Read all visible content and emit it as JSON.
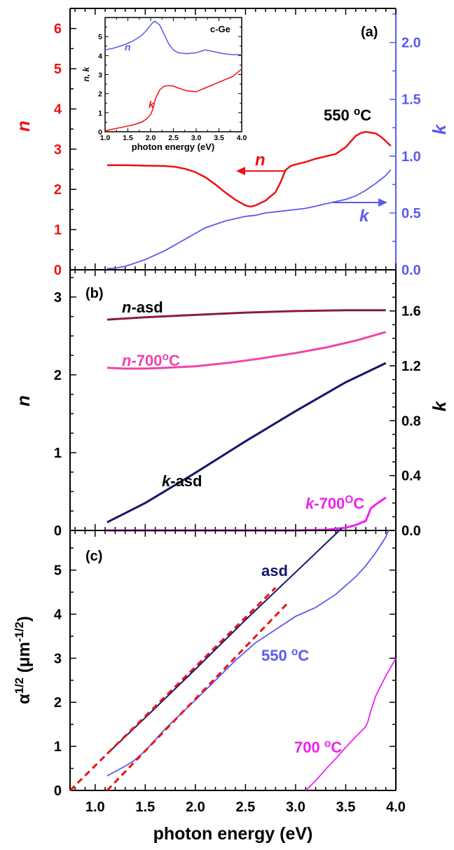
{
  "x_axis": {
    "label": "photon energy (eV)",
    "range": [
      0.75,
      4.0
    ],
    "ticks": [
      "1.0",
      "1.5",
      "2.0",
      "2.5",
      "3.0",
      "3.5",
      "4.0"
    ],
    "tick_values": [
      1.0,
      1.5,
      2.0,
      2.5,
      3.0,
      3.5,
      4.0
    ]
  },
  "colors": {
    "n_red": "#ee1111",
    "k_blue": "#5a5af0",
    "asd_n": "#8b1a4a",
    "ann_n": "#ee44aa",
    "asd_k": "#14146e",
    "ann_k": "#ee22ee",
    "fit_dash": "#ee1111",
    "frame": "#000000"
  },
  "panels": {
    "a": {
      "label": "(a)",
      "title_annotation": "550 °C",
      "left_axis": {
        "label": "n",
        "range": [
          0,
          6.5
        ],
        "ticks": [
          "0",
          "1",
          "2",
          "3",
          "4",
          "5",
          "6"
        ],
        "tick_values": [
          0,
          1,
          2,
          3,
          4,
          5,
          6
        ]
      },
      "right_axis": {
        "label": "k",
        "range": [
          0,
          2.3
        ],
        "ticks": [
          "0.0",
          "0.5",
          "1.0",
          "1.5",
          "2.0"
        ],
        "tick_values": [
          0,
          0.5,
          1.0,
          1.5,
          2.0
        ]
      },
      "arrow_n_label": "n",
      "arrow_k_label": "k",
      "inset": {
        "title": "c-Ge",
        "ylabel": "n, k",
        "xlabel": "photon energy (eV)",
        "x_range": [
          1.0,
          4.0
        ],
        "y_range": [
          0,
          6
        ],
        "x_ticks": [
          "1.0",
          "1.5",
          "2.0",
          "2.5",
          "3.0",
          "3.5",
          "4.0"
        ],
        "x_tick_values": [
          1.0,
          1.5,
          2.0,
          2.5,
          3.0,
          3.5,
          4.0
        ],
        "y_ticks": [
          "0",
          "1",
          "2",
          "3",
          "4",
          "5"
        ],
        "y_tick_values": [
          0,
          1,
          2,
          3,
          4,
          5
        ],
        "n_label": "n",
        "k_label": "k"
      }
    },
    "b": {
      "label": "(b)",
      "left_axis": {
        "label": "n",
        "range": [
          0,
          3.35
        ],
        "ticks": [
          "0",
          "1",
          "2",
          "3"
        ],
        "tick_values": [
          0,
          1,
          2,
          3
        ]
      },
      "right_axis": {
        "label": "k",
        "range": [
          0,
          1.9
        ],
        "ticks": [
          "0.0",
          "0.4",
          "0.8",
          "1.2",
          "1.6"
        ],
        "tick_values": [
          0,
          0.4,
          0.8,
          1.2,
          1.6
        ]
      },
      "labels": {
        "n_asd_prefix": "n",
        "n_asd_suffix": "-asd",
        "n_700_prefix": "n",
        "n_700_suffix": "-700",
        "n_700_sup": "o",
        "n_700_unit": "C",
        "k_asd_prefix": "k",
        "k_asd_suffix": "-asd",
        "k_700_prefix": "k",
        "k_700_suffix": "-700",
        "k_700_sup": "O",
        "k_700_unit": "C"
      }
    },
    "c": {
      "label": "(c)",
      "left_axis": {
        "label_main": "α",
        "label_sup": "1/2",
        "label_unit": " (μm",
        "label_unit_sup": "-1/2",
        "label_close": ")",
        "range": [
          0,
          5.9
        ],
        "ticks": [
          "0",
          "1",
          "2",
          "3",
          "4",
          "5"
        ],
        "tick_values": [
          0,
          1,
          2,
          3,
          4,
          5
        ]
      },
      "labels": {
        "asd": "asd",
        "t550_value": "550 ",
        "t550_sup": "o",
        "t550_unit": "C",
        "t700_value": "700 ",
        "t700_sup": "o",
        "t700_unit": "C"
      }
    }
  },
  "chart_data": [
    {
      "panel": "a",
      "type": "line",
      "series": [
        {
          "name": "n",
          "axis": "left",
          "x": [
            1.12,
            1.3,
            1.5,
            1.7,
            1.8,
            1.9,
            2.0,
            2.1,
            2.2,
            2.3,
            2.4,
            2.5,
            2.55,
            2.6,
            2.7,
            2.8,
            2.85,
            2.9,
            2.95,
            3.0,
            3.1,
            3.2,
            3.3,
            3.4,
            3.5,
            3.6,
            3.65,
            3.7,
            3.8,
            3.85,
            3.9,
            3.95
          ],
          "y": [
            2.6,
            2.6,
            2.59,
            2.58,
            2.56,
            2.51,
            2.43,
            2.3,
            2.12,
            1.92,
            1.74,
            1.6,
            1.57,
            1.6,
            1.72,
            1.93,
            2.18,
            2.48,
            2.58,
            2.62,
            2.68,
            2.76,
            2.82,
            2.88,
            3.05,
            3.33,
            3.4,
            3.43,
            3.39,
            3.31,
            3.2,
            3.08
          ]
        },
        {
          "name": "k",
          "axis": "right",
          "x": [
            1.12,
            1.2,
            1.3,
            1.4,
            1.5,
            1.6,
            1.7,
            1.8,
            1.9,
            2.0,
            2.1,
            2.2,
            2.3,
            2.4,
            2.5,
            2.6,
            2.7,
            2.8,
            2.9,
            3.0,
            3.1,
            3.2,
            3.3,
            3.4,
            3.5,
            3.6,
            3.7,
            3.8,
            3.9,
            3.95
          ],
          "y": [
            0.01,
            0.015,
            0.03,
            0.06,
            0.09,
            0.13,
            0.17,
            0.22,
            0.27,
            0.32,
            0.37,
            0.4,
            0.43,
            0.45,
            0.47,
            0.48,
            0.5,
            0.51,
            0.52,
            0.53,
            0.54,
            0.56,
            0.58,
            0.6,
            0.62,
            0.65,
            0.7,
            0.76,
            0.83,
            0.88
          ]
        }
      ]
    },
    {
      "panel": "a-inset",
      "type": "line",
      "series": [
        {
          "name": "n",
          "x": [
            1.0,
            1.2,
            1.4,
            1.6,
            1.8,
            1.9,
            2.0,
            2.05,
            2.1,
            2.2,
            2.3,
            2.4,
            2.5,
            2.6,
            2.8,
            3.0,
            3.2,
            3.4,
            3.6,
            3.8,
            4.0
          ],
          "y": [
            4.3,
            4.4,
            4.55,
            4.75,
            5.05,
            5.3,
            5.6,
            5.75,
            5.8,
            5.6,
            5.1,
            4.6,
            4.3,
            4.15,
            4.1,
            4.15,
            4.3,
            4.2,
            4.1,
            4.05,
            4.05
          ]
        },
        {
          "name": "k",
          "x": [
            1.0,
            1.2,
            1.4,
            1.6,
            1.8,
            1.9,
            2.0,
            2.05,
            2.1,
            2.2,
            2.3,
            2.4,
            2.5,
            2.6,
            2.8,
            3.0,
            3.2,
            3.4,
            3.6,
            3.8,
            4.0
          ],
          "y": [
            0.05,
            0.15,
            0.25,
            0.35,
            0.5,
            0.65,
            0.9,
            1.2,
            1.7,
            2.2,
            2.4,
            2.42,
            2.4,
            2.3,
            2.15,
            2.1,
            2.3,
            2.5,
            2.7,
            2.9,
            3.3
          ]
        }
      ]
    },
    {
      "panel": "b",
      "type": "line",
      "series": [
        {
          "name": "n-asd",
          "axis": "left",
          "x": [
            1.12,
            1.5,
            2.0,
            2.5,
            3.0,
            3.5,
            3.9
          ],
          "y": [
            2.71,
            2.74,
            2.77,
            2.8,
            2.82,
            2.83,
            2.83
          ]
        },
        {
          "name": "n-700°C",
          "axis": "left",
          "x": [
            1.12,
            1.3,
            1.5,
            1.7,
            2.0,
            2.3,
            2.6,
            3.0,
            3.3,
            3.6,
            3.9
          ],
          "y": [
            2.09,
            2.08,
            2.08,
            2.09,
            2.11,
            2.15,
            2.2,
            2.28,
            2.35,
            2.44,
            2.55
          ]
        },
        {
          "name": "k-asd",
          "axis": "right",
          "x": [
            1.12,
            1.5,
            2.0,
            2.5,
            3.0,
            3.5,
            3.9
          ],
          "y": [
            0.06,
            0.2,
            0.42,
            0.65,
            0.87,
            1.08,
            1.22
          ]
        },
        {
          "name": "k-700°C",
          "axis": "right",
          "x": [
            1.12,
            2.0,
            3.0,
            3.3,
            3.5,
            3.6,
            3.7,
            3.75,
            3.8,
            3.9
          ],
          "y": [
            0.0,
            0.0,
            0.0,
            0.005,
            0.02,
            0.04,
            0.07,
            0.16,
            0.19,
            0.24
          ]
        }
      ]
    },
    {
      "panel": "c",
      "type": "line",
      "series": [
        {
          "name": "asd",
          "x": [
            1.12,
            1.5,
            2.0,
            2.5,
            3.0,
            3.46
          ],
          "y": [
            0.83,
            1.65,
            2.75,
            3.87,
            4.95,
            5.95
          ]
        },
        {
          "name": "550 °C",
          "x": [
            1.12,
            1.2,
            1.3,
            1.35,
            1.4,
            1.5,
            1.7,
            2.0,
            2.2,
            2.4,
            2.6,
            2.8,
            3.0,
            3.2,
            3.4,
            3.6,
            3.7,
            3.8,
            3.9,
            3.93
          ],
          "y": [
            0.33,
            0.43,
            0.55,
            0.62,
            0.7,
            0.9,
            1.4,
            2.05,
            2.5,
            2.95,
            3.35,
            3.65,
            3.95,
            4.15,
            4.45,
            4.85,
            5.1,
            5.4,
            5.75,
            5.92
          ]
        },
        {
          "name": "700 °C",
          "x": [
            3.1,
            3.2,
            3.3,
            3.4,
            3.5,
            3.6,
            3.7,
            3.72,
            3.75,
            3.8,
            3.9,
            4.0
          ],
          "y": [
            0.0,
            0.22,
            0.48,
            0.72,
            0.98,
            1.22,
            1.45,
            1.55,
            1.8,
            2.15,
            2.6,
            3.0
          ]
        },
        {
          "name": "fit-asd",
          "style": "dashed",
          "x": [
            0.75,
            2.8
          ],
          "y": [
            0.0,
            4.6
          ]
        },
        {
          "name": "fit-550",
          "style": "dashed",
          "x": [
            1.12,
            2.92
          ],
          "y": [
            0.0,
            4.25
          ]
        }
      ]
    }
  ]
}
